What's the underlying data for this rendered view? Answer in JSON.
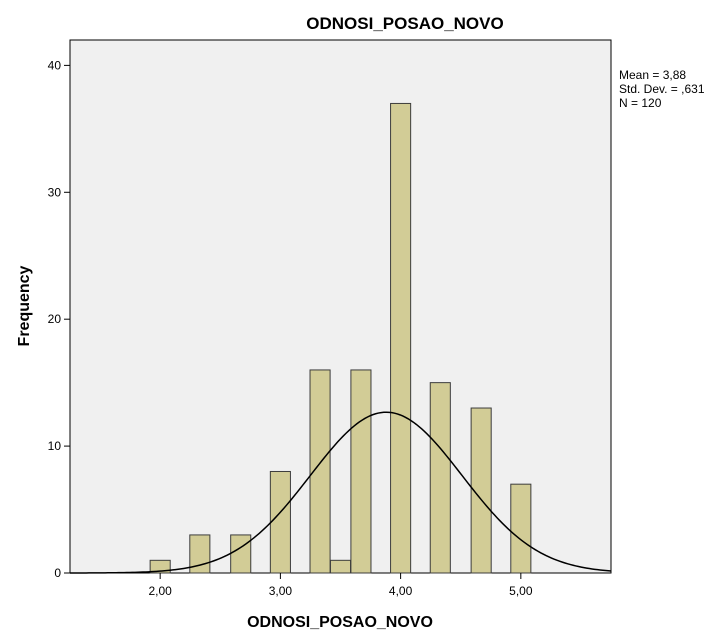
{
  "chart_data": {
    "type": "bar",
    "title": "ODNOSI_POSAO_NOVO",
    "xlabel": "ODNOSI_POSAO_NOVO",
    "ylabel": "Frequency",
    "xlim": [
      1.25,
      5.75
    ],
    "ylim": [
      0,
      42
    ],
    "x_ticks": [
      {
        "value": 2.0,
        "label": "2,00"
      },
      {
        "value": 3.0,
        "label": "3,00"
      },
      {
        "value": 4.0,
        "label": "4,00"
      },
      {
        "value": 5.0,
        "label": "5,00"
      }
    ],
    "y_ticks": [
      {
        "value": 0,
        "label": "0"
      },
      {
        "value": 10,
        "label": "10"
      },
      {
        "value": 20,
        "label": "20"
      },
      {
        "value": 30,
        "label": "30"
      },
      {
        "value": 40,
        "label": "40"
      }
    ],
    "bins": [
      {
        "center": 2.0,
        "value": 1
      },
      {
        "center": 2.33,
        "value": 3
      },
      {
        "center": 2.67,
        "value": 3
      },
      {
        "center": 3.0,
        "value": 8
      },
      {
        "center": 3.33,
        "value": 16
      },
      {
        "center": 3.5,
        "value": 1
      },
      {
        "center": 3.67,
        "value": 16
      },
      {
        "center": 4.0,
        "value": 37
      },
      {
        "center": 4.33,
        "value": 15
      },
      {
        "center": 4.67,
        "value": 13
      },
      {
        "center": 5.0,
        "value": 7
      }
    ],
    "bin_width": 0.167,
    "normal_curve": {
      "mean": 3.88,
      "std": 0.631,
      "n": 120
    },
    "stats_lines": [
      "Mean = 3,88",
      "Std. Dev. = ,631",
      "N = 120"
    ],
    "colors": {
      "bar_fill": "#d2cc96",
      "bar_stroke": "#3c3c3c",
      "plot_bg": "#f0f0f0",
      "curve": "#000000"
    },
    "grid": false,
    "legend": "none"
  }
}
